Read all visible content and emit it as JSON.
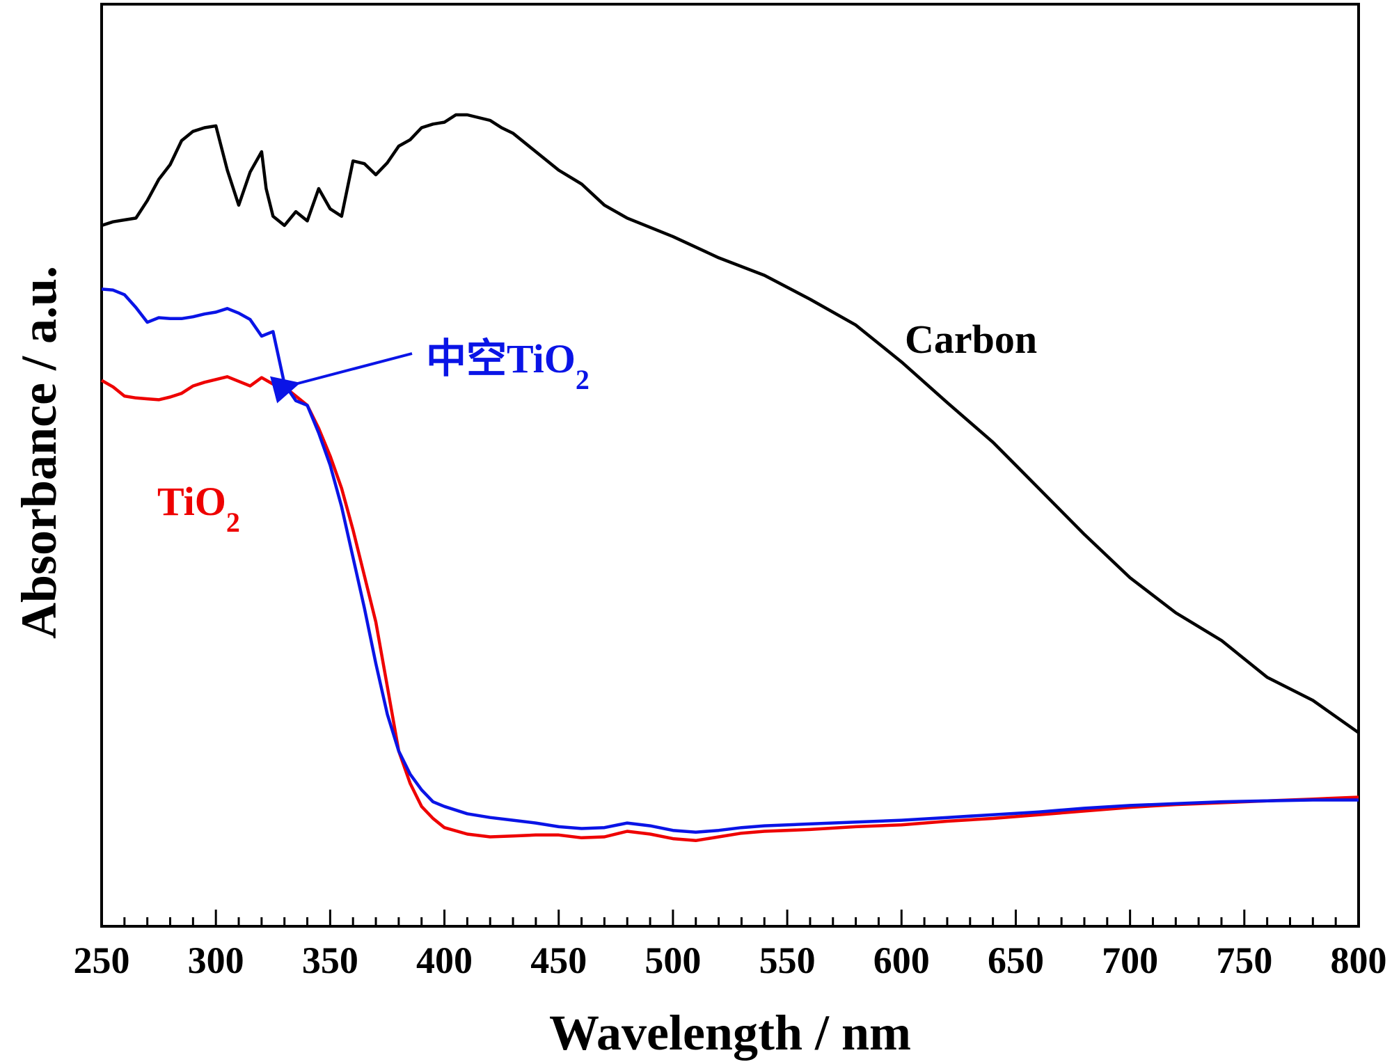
{
  "chart_data": {
    "type": "line",
    "title": "",
    "xlabel": "Wavelength / nm",
    "ylabel": "Absorbance / a.u.",
    "xlim": [
      250,
      800
    ],
    "ylim": [
      0,
      1
    ],
    "xticks": [
      250,
      300,
      350,
      400,
      450,
      500,
      550,
      600,
      650,
      700,
      750,
      800
    ],
    "xtick_labels": [
      "250",
      "300",
      "350",
      "400",
      "450",
      "500",
      "550",
      "600",
      "650",
      "700",
      "750",
      "800"
    ],
    "grid": false,
    "series": [
      {
        "name": "Carbon",
        "label": "Carbon",
        "color": "#000000",
        "x": [
          250,
          255,
          260,
          265,
          270,
          275,
          280,
          285,
          290,
          295,
          300,
          305,
          310,
          315,
          320,
          322,
          325,
          330,
          335,
          340,
          345,
          350,
          355,
          360,
          365,
          370,
          375,
          380,
          385,
          390,
          395,
          400,
          405,
          410,
          415,
          420,
          425,
          430,
          440,
          450,
          460,
          470,
          480,
          500,
          520,
          540,
          560,
          580,
          600,
          620,
          640,
          650,
          660,
          680,
          700,
          720,
          740,
          760,
          780,
          800
        ],
        "y": [
          0.76,
          0.764,
          0.766,
          0.768,
          0.787,
          0.81,
          0.826,
          0.852,
          0.862,
          0.866,
          0.868,
          0.82,
          0.782,
          0.818,
          0.84,
          0.8,
          0.77,
          0.76,
          0.775,
          0.765,
          0.8,
          0.778,
          0.77,
          0.83,
          0.827,
          0.815,
          0.828,
          0.846,
          0.853,
          0.866,
          0.87,
          0.872,
          0.88,
          0.88,
          0.877,
          0.874,
          0.866,
          0.86,
          0.84,
          0.82,
          0.805,
          0.782,
          0.768,
          0.748,
          0.725,
          0.706,
          0.68,
          0.652,
          0.612,
          0.568,
          0.525,
          0.5,
          0.475,
          0.425,
          0.378,
          0.34,
          0.31,
          0.27,
          0.245,
          0.21
        ]
      },
      {
        "name": "TiO2",
        "label_main": "TiO",
        "label_sub": "2",
        "color": "#ee0000",
        "x": [
          250,
          255,
          260,
          265,
          270,
          275,
          280,
          285,
          290,
          295,
          300,
          305,
          310,
          315,
          320,
          325,
          330,
          335,
          340,
          345,
          350,
          355,
          360,
          365,
          370,
          375,
          380,
          385,
          390,
          395,
          400,
          410,
          420,
          430,
          440,
          450,
          460,
          470,
          480,
          490,
          500,
          510,
          520,
          530,
          540,
          560,
          580,
          600,
          620,
          640,
          660,
          680,
          700,
          720,
          740,
          760,
          780,
          800
        ],
        "y": [
          0.592,
          0.585,
          0.575,
          0.573,
          0.572,
          0.571,
          0.574,
          0.578,
          0.586,
          0.59,
          0.593,
          0.596,
          0.591,
          0.586,
          0.595,
          0.588,
          0.585,
          0.575,
          0.565,
          0.54,
          0.51,
          0.475,
          0.43,
          0.38,
          0.33,
          0.26,
          0.19,
          0.155,
          0.13,
          0.117,
          0.107,
          0.1,
          0.097,
          0.098,
          0.099,
          0.099,
          0.096,
          0.097,
          0.103,
          0.1,
          0.095,
          0.093,
          0.097,
          0.101,
          0.103,
          0.105,
          0.108,
          0.11,
          0.114,
          0.117,
          0.121,
          0.125,
          0.129,
          0.132,
          0.134,
          0.136,
          0.138,
          0.14
        ]
      },
      {
        "name": "中空TiO2",
        "label_main": "中空TiO",
        "label_sub": "2",
        "color": "#0a14e6",
        "x": [
          250,
          255,
          260,
          265,
          270,
          275,
          280,
          285,
          290,
          295,
          300,
          305,
          310,
          315,
          320,
          325,
          330,
          335,
          340,
          345,
          350,
          355,
          360,
          365,
          370,
          375,
          380,
          385,
          390,
          395,
          400,
          410,
          420,
          430,
          440,
          450,
          460,
          470,
          480,
          490,
          500,
          510,
          520,
          530,
          540,
          560,
          580,
          600,
          620,
          640,
          660,
          680,
          700,
          720,
          740,
          760,
          780,
          800
        ],
        "y": [
          0.691,
          0.69,
          0.685,
          0.671,
          0.655,
          0.66,
          0.659,
          0.659,
          0.661,
          0.664,
          0.666,
          0.67,
          0.665,
          0.658,
          0.64,
          0.645,
          0.588,
          0.57,
          0.565,
          0.535,
          0.5,
          0.455,
          0.4,
          0.345,
          0.285,
          0.23,
          0.19,
          0.165,
          0.148,
          0.135,
          0.13,
          0.122,
          0.118,
          0.115,
          0.112,
          0.108,
          0.106,
          0.107,
          0.112,
          0.109,
          0.104,
          0.102,
          0.104,
          0.107,
          0.109,
          0.111,
          0.113,
          0.115,
          0.118,
          0.121,
          0.124,
          0.128,
          0.131,
          0.133,
          0.135,
          0.136,
          0.137,
          0.137
        ]
      }
    ],
    "annotations": [
      {
        "type": "arrow",
        "text": "中空TiO2",
        "points_to": [
          330,
          0.645
        ],
        "color": "#0a14e6"
      }
    ]
  }
}
